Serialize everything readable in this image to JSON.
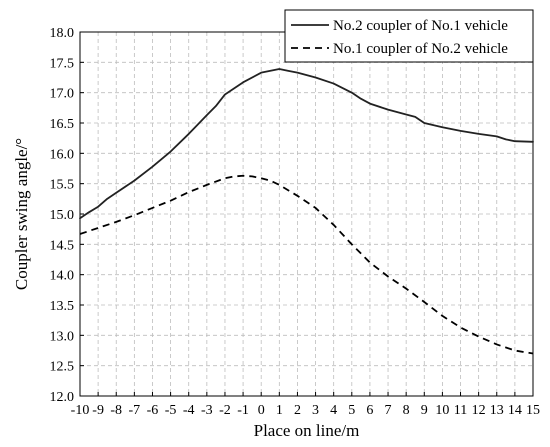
{
  "chart_data": {
    "type": "line",
    "xlabel": "Place on line/m",
    "ylabel": "Coupler swing angle/°",
    "xlim": [
      -10,
      15
    ],
    "ylim": [
      12.0,
      18.0
    ],
    "x_ticks": [
      -10,
      -9,
      -8,
      -7,
      -6,
      -5,
      -4,
      -3,
      -2,
      -1,
      0,
      1,
      2,
      3,
      4,
      5,
      6,
      7,
      8,
      9,
      10,
      11,
      12,
      13,
      14,
      15
    ],
    "y_ticks": [
      "12.0",
      "12.5",
      "13.0",
      "13.5",
      "14.0",
      "14.5",
      "15.0",
      "15.5",
      "16.0",
      "16.5",
      "17.0",
      "17.5",
      "18.0"
    ],
    "grid": true,
    "legend_position": "top-right",
    "series": [
      {
        "name": "No.2 coupler of No.1 vehicle",
        "style": "solid",
        "color": "#222222",
        "x": [
          -10,
          -9.5,
          -9,
          -8.5,
          -8,
          -7,
          -6,
          -5,
          -4,
          -3,
          -2.5,
          -2,
          -1,
          0,
          1,
          1.5,
          2,
          3,
          4,
          5,
          5.5,
          6,
          7,
          8,
          8.5,
          9,
          10,
          11,
          12,
          13,
          13.5,
          14,
          15
        ],
        "y": [
          14.93,
          15.03,
          15.12,
          15.25,
          15.35,
          15.55,
          15.78,
          16.03,
          16.32,
          16.63,
          16.78,
          16.97,
          17.17,
          17.33,
          17.39,
          17.36,
          17.33,
          17.25,
          17.15,
          17.0,
          16.9,
          16.82,
          16.72,
          16.64,
          16.6,
          16.5,
          16.43,
          16.37,
          16.32,
          16.28,
          16.23,
          16.2,
          16.19
        ]
      },
      {
        "name": "No.1 coupler of No.2 vehicle",
        "style": "dashed",
        "color": "#000000",
        "x": [
          -10,
          -9,
          -8,
          -7,
          -6,
          -5,
          -4,
          -3,
          -2,
          -1.5,
          -1,
          -0.5,
          0,
          0.5,
          1,
          2,
          3,
          4,
          5,
          6,
          7,
          8,
          9,
          10,
          11,
          12,
          13,
          14,
          15
        ],
        "y": [
          14.67,
          14.77,
          14.87,
          14.98,
          15.1,
          15.22,
          15.36,
          15.48,
          15.59,
          15.62,
          15.63,
          15.62,
          15.59,
          15.55,
          15.48,
          15.3,
          15.1,
          14.82,
          14.5,
          14.2,
          13.97,
          13.77,
          13.55,
          13.32,
          13.13,
          12.98,
          12.85,
          12.75,
          12.7
        ]
      }
    ]
  }
}
